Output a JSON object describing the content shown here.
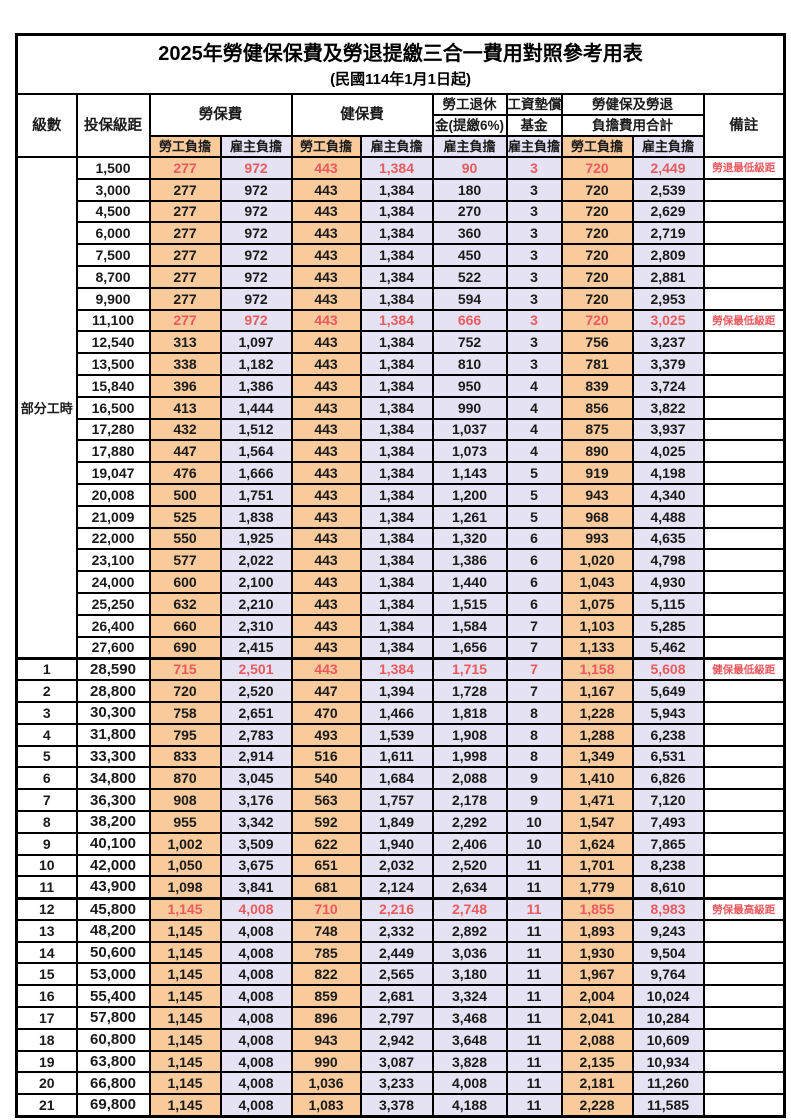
{
  "title": "2025年勞健保保費及勞退提繳三合一費用對照參考用表",
  "subtitle": "(民國114年1月1日起)",
  "colors": {
    "employee_col_bg": "#F8CA9C",
    "employer_col_bg": "#E5E3F3",
    "highlight_red": "#EA5A5F",
    "border": "#000000"
  },
  "header": {
    "level": "級數",
    "bracket": "投保級距",
    "labor_insurance": "勞保費",
    "health_insurance": "健保費",
    "pension_line1": "勞工退休",
    "pension_line2": "金(提繳6%)",
    "wage_fund_line1": "工資墊償",
    "wage_fund_line2": "基金",
    "total_line1": "勞健保及勞退",
    "total_line2": "負擔費用合計",
    "employee_burden": "勞工負擔",
    "employer_burden": "雇主負擔",
    "remark": "備註"
  },
  "part_time_label": "部分工時",
  "part_time_rowspan": 23,
  "rows": [
    {
      "level": "",
      "bracket": "1,500",
      "li_emp": "277",
      "li_er": "972",
      "hi_emp": "443",
      "hi_er": "1,384",
      "pension": "90",
      "fund": "3",
      "tot_emp": "720",
      "tot_er": "2,449",
      "remark": "勞退最低級距",
      "red": true,
      "thick": false
    },
    {
      "level": "",
      "bracket": "3,000",
      "li_emp": "277",
      "li_er": "972",
      "hi_emp": "443",
      "hi_er": "1,384",
      "pension": "180",
      "fund": "3",
      "tot_emp": "720",
      "tot_er": "2,539",
      "remark": "",
      "red": false,
      "thick": false
    },
    {
      "level": "",
      "bracket": "4,500",
      "li_emp": "277",
      "li_er": "972",
      "hi_emp": "443",
      "hi_er": "1,384",
      "pension": "270",
      "fund": "3",
      "tot_emp": "720",
      "tot_er": "2,629",
      "remark": "",
      "red": false,
      "thick": false
    },
    {
      "level": "",
      "bracket": "6,000",
      "li_emp": "277",
      "li_er": "972",
      "hi_emp": "443",
      "hi_er": "1,384",
      "pension": "360",
      "fund": "3",
      "tot_emp": "720",
      "tot_er": "2,719",
      "remark": "",
      "red": false,
      "thick": false
    },
    {
      "level": "",
      "bracket": "7,500",
      "li_emp": "277",
      "li_er": "972",
      "hi_emp": "443",
      "hi_er": "1,384",
      "pension": "450",
      "fund": "3",
      "tot_emp": "720",
      "tot_er": "2,809",
      "remark": "",
      "red": false,
      "thick": false
    },
    {
      "level": "",
      "bracket": "8,700",
      "li_emp": "277",
      "li_er": "972",
      "hi_emp": "443",
      "hi_er": "1,384",
      "pension": "522",
      "fund": "3",
      "tot_emp": "720",
      "tot_er": "2,881",
      "remark": "",
      "red": false,
      "thick": false
    },
    {
      "level": "",
      "bracket": "9,900",
      "li_emp": "277",
      "li_er": "972",
      "hi_emp": "443",
      "hi_er": "1,384",
      "pension": "594",
      "fund": "3",
      "tot_emp": "720",
      "tot_er": "2,953",
      "remark": "",
      "red": false,
      "thick": false
    },
    {
      "level": "",
      "bracket": "11,100",
      "li_emp": "277",
      "li_er": "972",
      "hi_emp": "443",
      "hi_er": "1,384",
      "pension": "666",
      "fund": "3",
      "tot_emp": "720",
      "tot_er": "3,025",
      "remark": "勞保最低級距",
      "red": true,
      "thick": false
    },
    {
      "level": "",
      "bracket": "12,540",
      "li_emp": "313",
      "li_er": "1,097",
      "hi_emp": "443",
      "hi_er": "1,384",
      "pension": "752",
      "fund": "3",
      "tot_emp": "756",
      "tot_er": "3,237",
      "remark": "",
      "red": false,
      "thick": false
    },
    {
      "level": "",
      "bracket": "13,500",
      "li_emp": "338",
      "li_er": "1,182",
      "hi_emp": "443",
      "hi_er": "1,384",
      "pension": "810",
      "fund": "3",
      "tot_emp": "781",
      "tot_er": "3,379",
      "remark": "",
      "red": false,
      "thick": false
    },
    {
      "level": "",
      "bracket": "15,840",
      "li_emp": "396",
      "li_er": "1,386",
      "hi_emp": "443",
      "hi_er": "1,384",
      "pension": "950",
      "fund": "4",
      "tot_emp": "839",
      "tot_er": "3,724",
      "remark": "",
      "red": false,
      "thick": false
    },
    {
      "level": "",
      "bracket": "16,500",
      "li_emp": "413",
      "li_er": "1,444",
      "hi_emp": "443",
      "hi_er": "1,384",
      "pension": "990",
      "fund": "4",
      "tot_emp": "856",
      "tot_er": "3,822",
      "remark": "",
      "red": false,
      "thick": false
    },
    {
      "level": "",
      "bracket": "17,280",
      "li_emp": "432",
      "li_er": "1,512",
      "hi_emp": "443",
      "hi_er": "1,384",
      "pension": "1,037",
      "fund": "4",
      "tot_emp": "875",
      "tot_er": "3,937",
      "remark": "",
      "red": false,
      "thick": false
    },
    {
      "level": "",
      "bracket": "17,880",
      "li_emp": "447",
      "li_er": "1,564",
      "hi_emp": "443",
      "hi_er": "1,384",
      "pension": "1,073",
      "fund": "4",
      "tot_emp": "890",
      "tot_er": "4,025",
      "remark": "",
      "red": false,
      "thick": false
    },
    {
      "level": "",
      "bracket": "19,047",
      "li_emp": "476",
      "li_er": "1,666",
      "hi_emp": "443",
      "hi_er": "1,384",
      "pension": "1,143",
      "fund": "5",
      "tot_emp": "919",
      "tot_er": "4,198",
      "remark": "",
      "red": false,
      "thick": false
    },
    {
      "level": "",
      "bracket": "20,008",
      "li_emp": "500",
      "li_er": "1,751",
      "hi_emp": "443",
      "hi_er": "1,384",
      "pension": "1,200",
      "fund": "5",
      "tot_emp": "943",
      "tot_er": "4,340",
      "remark": "",
      "red": false,
      "thick": false
    },
    {
      "level": "",
      "bracket": "21,009",
      "li_emp": "525",
      "li_er": "1,838",
      "hi_emp": "443",
      "hi_er": "1,384",
      "pension": "1,261",
      "fund": "5",
      "tot_emp": "968",
      "tot_er": "4,488",
      "remark": "",
      "red": false,
      "thick": false
    },
    {
      "level": "",
      "bracket": "22,000",
      "li_emp": "550",
      "li_er": "1,925",
      "hi_emp": "443",
      "hi_er": "1,384",
      "pension": "1,320",
      "fund": "6",
      "tot_emp": "993",
      "tot_er": "4,635",
      "remark": "",
      "red": false,
      "thick": false
    },
    {
      "level": "",
      "bracket": "23,100",
      "li_emp": "577",
      "li_er": "2,022",
      "hi_emp": "443",
      "hi_er": "1,384",
      "pension": "1,386",
      "fund": "6",
      "tot_emp": "1,020",
      "tot_er": "4,798",
      "remark": "",
      "red": false,
      "thick": false
    },
    {
      "level": "",
      "bracket": "24,000",
      "li_emp": "600",
      "li_er": "2,100",
      "hi_emp": "443",
      "hi_er": "1,384",
      "pension": "1,440",
      "fund": "6",
      "tot_emp": "1,043",
      "tot_er": "4,930",
      "remark": "",
      "red": false,
      "thick": false
    },
    {
      "level": "",
      "bracket": "25,250",
      "li_emp": "632",
      "li_er": "2,210",
      "hi_emp": "443",
      "hi_er": "1,384",
      "pension": "1,515",
      "fund": "6",
      "tot_emp": "1,075",
      "tot_er": "5,115",
      "remark": "",
      "red": false,
      "thick": false
    },
    {
      "level": "",
      "bracket": "26,400",
      "li_emp": "660",
      "li_er": "2,310",
      "hi_emp": "443",
      "hi_er": "1,384",
      "pension": "1,584",
      "fund": "7",
      "tot_emp": "1,103",
      "tot_er": "5,285",
      "remark": "",
      "red": false,
      "thick": false
    },
    {
      "level": "",
      "bracket": "27,600",
      "li_emp": "690",
      "li_er": "2,415",
      "hi_emp": "443",
      "hi_er": "1,384",
      "pension": "1,656",
      "fund": "7",
      "tot_emp": "1,133",
      "tot_er": "5,462",
      "remark": "",
      "red": false,
      "thick": false
    },
    {
      "level": "1",
      "bracket": "28,590",
      "li_emp": "715",
      "li_er": "2,501",
      "hi_emp": "443",
      "hi_er": "1,384",
      "pension": "1,715",
      "fund": "7",
      "tot_emp": "1,158",
      "tot_er": "5,608",
      "remark": "健保最低級距",
      "red": true,
      "thick": true
    },
    {
      "level": "2",
      "bracket": "28,800",
      "li_emp": "720",
      "li_er": "2,520",
      "hi_emp": "447",
      "hi_er": "1,394",
      "pension": "1,728",
      "fund": "7",
      "tot_emp": "1,167",
      "tot_er": "5,649",
      "remark": "",
      "red": false,
      "thick": false
    },
    {
      "level": "3",
      "bracket": "30,300",
      "li_emp": "758",
      "li_er": "2,651",
      "hi_emp": "470",
      "hi_er": "1,466",
      "pension": "1,818",
      "fund": "8",
      "tot_emp": "1,228",
      "tot_er": "5,943",
      "remark": "",
      "red": false,
      "thick": false
    },
    {
      "level": "4",
      "bracket": "31,800",
      "li_emp": "795",
      "li_er": "2,783",
      "hi_emp": "493",
      "hi_er": "1,539",
      "pension": "1,908",
      "fund": "8",
      "tot_emp": "1,288",
      "tot_er": "6,238",
      "remark": "",
      "red": false,
      "thick": false
    },
    {
      "level": "5",
      "bracket": "33,300",
      "li_emp": "833",
      "li_er": "2,914",
      "hi_emp": "516",
      "hi_er": "1,611",
      "pension": "1,998",
      "fund": "8",
      "tot_emp": "1,349",
      "tot_er": "6,531",
      "remark": "",
      "red": false,
      "thick": false
    },
    {
      "level": "6",
      "bracket": "34,800",
      "li_emp": "870",
      "li_er": "3,045",
      "hi_emp": "540",
      "hi_er": "1,684",
      "pension": "2,088",
      "fund": "9",
      "tot_emp": "1,410",
      "tot_er": "6,826",
      "remark": "",
      "red": false,
      "thick": false
    },
    {
      "level": "7",
      "bracket": "36,300",
      "li_emp": "908",
      "li_er": "3,176",
      "hi_emp": "563",
      "hi_er": "1,757",
      "pension": "2,178",
      "fund": "9",
      "tot_emp": "1,471",
      "tot_er": "7,120",
      "remark": "",
      "red": false,
      "thick": false
    },
    {
      "level": "8",
      "bracket": "38,200",
      "li_emp": "955",
      "li_er": "3,342",
      "hi_emp": "592",
      "hi_er": "1,849",
      "pension": "2,292",
      "fund": "10",
      "tot_emp": "1,547",
      "tot_er": "7,493",
      "remark": "",
      "red": false,
      "thick": false
    },
    {
      "level": "9",
      "bracket": "40,100",
      "li_emp": "1,002",
      "li_er": "3,509",
      "hi_emp": "622",
      "hi_er": "1,940",
      "pension": "2,406",
      "fund": "10",
      "tot_emp": "1,624",
      "tot_er": "7,865",
      "remark": "",
      "red": false,
      "thick": false
    },
    {
      "level": "10",
      "bracket": "42,000",
      "li_emp": "1,050",
      "li_er": "3,675",
      "hi_emp": "651",
      "hi_er": "2,032",
      "pension": "2,520",
      "fund": "11",
      "tot_emp": "1,701",
      "tot_er": "8,238",
      "remark": "",
      "red": false,
      "thick": false
    },
    {
      "level": "11",
      "bracket": "43,900",
      "li_emp": "1,098",
      "li_er": "3,841",
      "hi_emp": "681",
      "hi_er": "2,124",
      "pension": "2,634",
      "fund": "11",
      "tot_emp": "1,779",
      "tot_er": "8,610",
      "remark": "",
      "red": false,
      "thick": false
    },
    {
      "level": "12",
      "bracket": "45,800",
      "li_emp": "1,145",
      "li_er": "4,008",
      "hi_emp": "710",
      "hi_er": "2,216",
      "pension": "2,748",
      "fund": "11",
      "tot_emp": "1,855",
      "tot_er": "8,983",
      "remark": "勞保最高級距",
      "red": true,
      "thick": true
    },
    {
      "level": "13",
      "bracket": "48,200",
      "li_emp": "1,145",
      "li_er": "4,008",
      "hi_emp": "748",
      "hi_er": "2,332",
      "pension": "2,892",
      "fund": "11",
      "tot_emp": "1,893",
      "tot_er": "9,243",
      "remark": "",
      "red": false,
      "thick": false
    },
    {
      "level": "14",
      "bracket": "50,600",
      "li_emp": "1,145",
      "li_er": "4,008",
      "hi_emp": "785",
      "hi_er": "2,449",
      "pension": "3,036",
      "fund": "11",
      "tot_emp": "1,930",
      "tot_er": "9,504",
      "remark": "",
      "red": false,
      "thick": false
    },
    {
      "level": "15",
      "bracket": "53,000",
      "li_emp": "1,145",
      "li_er": "4,008",
      "hi_emp": "822",
      "hi_er": "2,565",
      "pension": "3,180",
      "fund": "11",
      "tot_emp": "1,967",
      "tot_er": "9,764",
      "remark": "",
      "red": false,
      "thick": false
    },
    {
      "level": "16",
      "bracket": "55,400",
      "li_emp": "1,145",
      "li_er": "4,008",
      "hi_emp": "859",
      "hi_er": "2,681",
      "pension": "3,324",
      "fund": "11",
      "tot_emp": "2,004",
      "tot_er": "10,024",
      "remark": "",
      "red": false,
      "thick": false
    },
    {
      "level": "17",
      "bracket": "57,800",
      "li_emp": "1,145",
      "li_er": "4,008",
      "hi_emp": "896",
      "hi_er": "2,797",
      "pension": "3,468",
      "fund": "11",
      "tot_emp": "2,041",
      "tot_er": "10,284",
      "remark": "",
      "red": false,
      "thick": false
    },
    {
      "level": "18",
      "bracket": "60,800",
      "li_emp": "1,145",
      "li_er": "4,008",
      "hi_emp": "943",
      "hi_er": "2,942",
      "pension": "3,648",
      "fund": "11",
      "tot_emp": "2,088",
      "tot_er": "10,609",
      "remark": "",
      "red": false,
      "thick": false
    },
    {
      "level": "19",
      "bracket": "63,800",
      "li_emp": "1,145",
      "li_er": "4,008",
      "hi_emp": "990",
      "hi_er": "3,087",
      "pension": "3,828",
      "fund": "11",
      "tot_emp": "2,135",
      "tot_er": "10,934",
      "remark": "",
      "red": false,
      "thick": false
    },
    {
      "level": "20",
      "bracket": "66,800",
      "li_emp": "1,145",
      "li_er": "4,008",
      "hi_emp": "1,036",
      "hi_er": "3,233",
      "pension": "4,008",
      "fund": "11",
      "tot_emp": "2,181",
      "tot_er": "11,260",
      "remark": "",
      "red": false,
      "thick": false
    },
    {
      "level": "21",
      "bracket": "69,800",
      "li_emp": "1,145",
      "li_er": "4,008",
      "hi_emp": "1,083",
      "hi_er": "3,378",
      "pension": "4,188",
      "fund": "11",
      "tot_emp": "2,228",
      "tot_er": "11,585",
      "remark": "",
      "red": false,
      "thick": false
    }
  ]
}
